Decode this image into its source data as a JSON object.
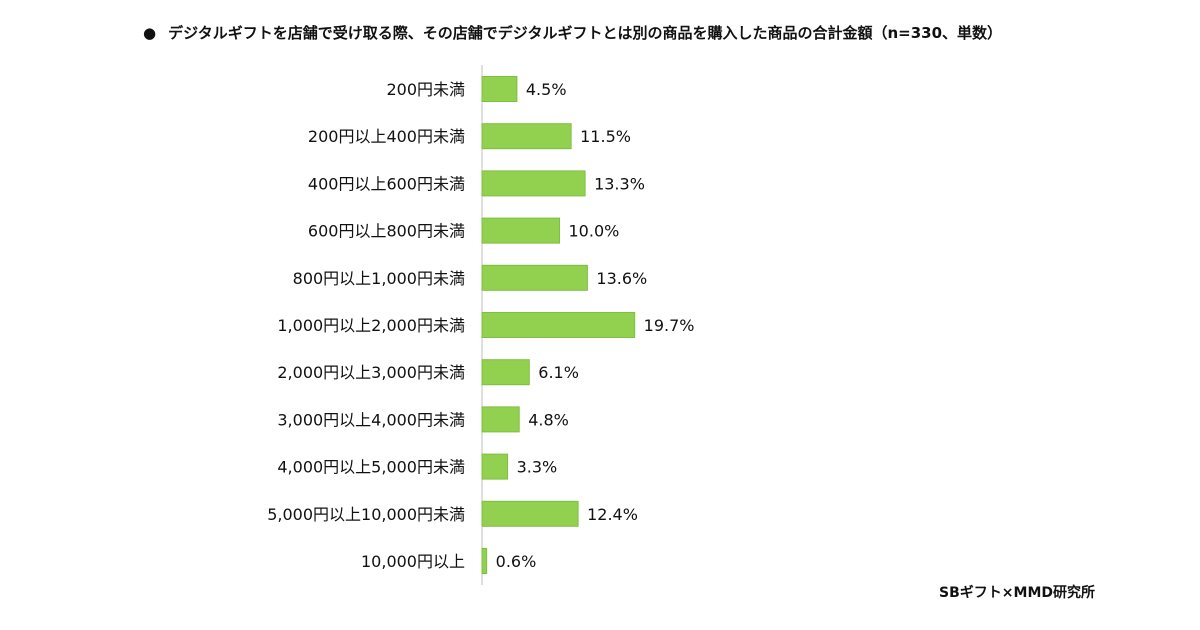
{
  "title": {
    "bullet": "●",
    "text": "デジタルギフトを店舗で受け取る際、その店舗でデジタルギフトとは別の商品を購入した商品の合計金額（n=330、単数）"
  },
  "source": "SBギフト×MMD研究所",
  "chart_data": {
    "type": "bar",
    "orientation": "horizontal",
    "title": "デジタルギフトを店舗で受け取る際、その店舗でデジタルギフトとは別の商品を購入した商品の合計金額（n=330、単数）",
    "categories": [
      "200円未満",
      "200円以上400円未満",
      "400円以上600円未満",
      "600円以上800円未満",
      "800円以上1,000円未満",
      "1,000円以上2,000円未満",
      "2,000円以上3,000円未満",
      "3,000円以上4,000円未満",
      "4,000円以上5,000円未満",
      "5,000円以上10,000円未満",
      "10,000円以上"
    ],
    "values": [
      4.5,
      11.5,
      13.3,
      10.0,
      13.6,
      19.7,
      6.1,
      4.8,
      3.3,
      12.4,
      0.6
    ],
    "value_labels": [
      "4.5%",
      "11.5%",
      "13.3%",
      "10.0%",
      "13.6%",
      "19.7%",
      "6.1%",
      "4.8%",
      "3.3%",
      "12.4%",
      "0.6%"
    ],
    "unit": "%",
    "xlim": [
      0,
      100
    ],
    "grid": false,
    "legend": "none",
    "colors": {
      "bar": "#92d050",
      "bar_edge": "#7fbf3f",
      "axis": "#bfbfbf"
    }
  }
}
